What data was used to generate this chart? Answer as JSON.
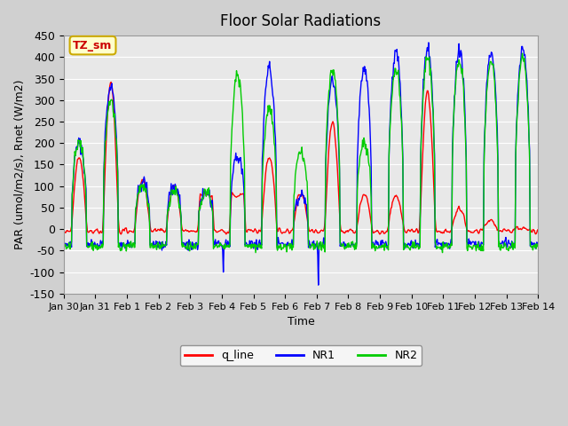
{
  "title": "Floor Solar Radiations",
  "xlabel": "Time",
  "ylabel": "PAR (umol/m2/s), Rnet (W/m2)",
  "ylim": [
    -150,
    450
  ],
  "yticks": [
    -150,
    -100,
    -50,
    0,
    50,
    100,
    150,
    200,
    250,
    300,
    350,
    400,
    450
  ],
  "bg_color": "#e8e8e8",
  "plot_bg": "#e8e8e8",
  "tz_label": "TZ_sm",
  "tz_bg": "#ffffcc",
  "tz_border": "#ccaa00",
  "legend_labels": [
    "q_line",
    "NR1",
    "NR2"
  ],
  "legend_colors": [
    "#ff0000",
    "#0000ff",
    "#00cc00"
  ],
  "line_colors": {
    "q_line": "#ff0000",
    "NR1": "#0000ff",
    "NR2": "#00cc00"
  },
  "xticklabels": [
    "Jan 30",
    "Jan 31",
    "Feb 1",
    "Feb 2",
    "Feb 3",
    "Feb 4",
    "Feb 5",
    "Feb 6",
    "Feb 7",
    "Feb 8",
    "Feb 9",
    "Feb 10",
    "Feb 11",
    "Feb 12",
    "Feb 13",
    "Feb 14"
  ],
  "n_days": 15,
  "seed": 42
}
